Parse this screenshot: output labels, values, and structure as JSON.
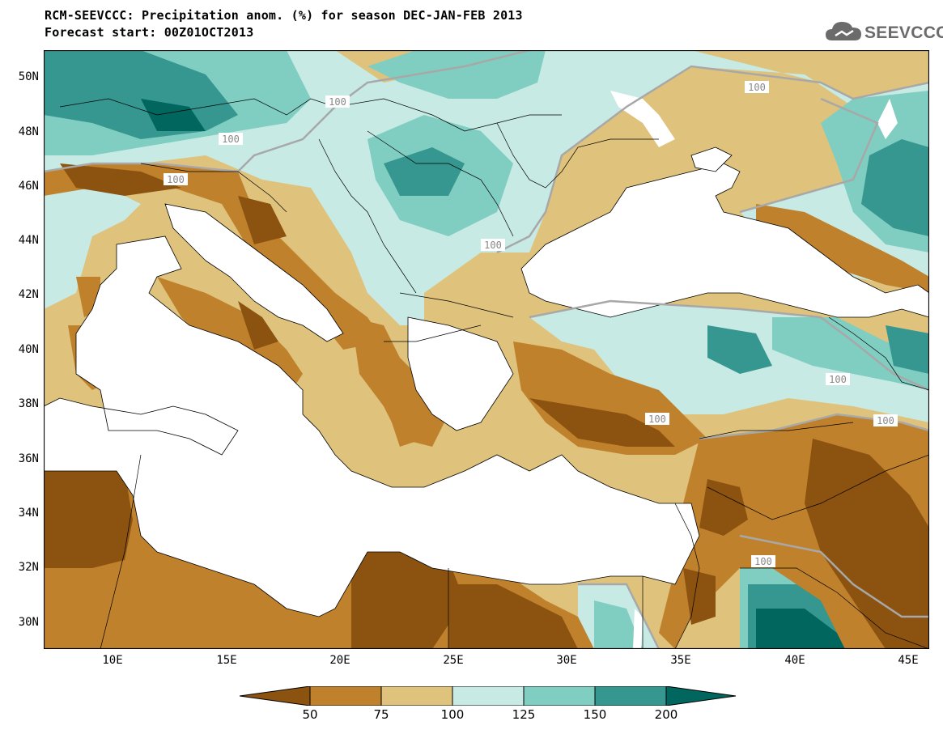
{
  "title_line1": "RCM-SEEVCCC: Precipitation anom. (%) for season DEC-JAN-FEB 2013",
  "title_line2": "Forecast start: 00Z01OCT2013",
  "logo_text": "SEEVCCC",
  "map": {
    "type": "filled contour map",
    "variable": "Precipitation anomaly (%)",
    "lon_range": [
      7,
      46
    ],
    "lat_range": [
      29,
      51
    ],
    "y_tick_labels": [
      "50N",
      "48N",
      "46N",
      "44N",
      "42N",
      "40N",
      "38N",
      "36N",
      "34N",
      "32N",
      "30N"
    ],
    "x_tick_labels": [
      "10E",
      "15E",
      "20E",
      "25E",
      "30E",
      "35E",
      "40E",
      "45E"
    ],
    "contour_label": "100",
    "colors": {
      "lt50": "#8c5210",
      "50_75": "#bf812c",
      "75_100": "#dfc27c",
      "100_125": "#c7eae5",
      "125_150": "#80cdc1",
      "150_200": "#35978f",
      "gt200": "#01665e",
      "sea": "#ffffff",
      "contour100": "#a8a8a8"
    }
  },
  "colorbar": {
    "labels": [
      "50",
      "75",
      "100",
      "125",
      "150",
      "200"
    ],
    "colors": [
      "#8c5210",
      "#bf812c",
      "#dfc27c",
      "#c7eae5",
      "#80cdc1",
      "#35978f",
      "#01665e"
    ]
  }
}
